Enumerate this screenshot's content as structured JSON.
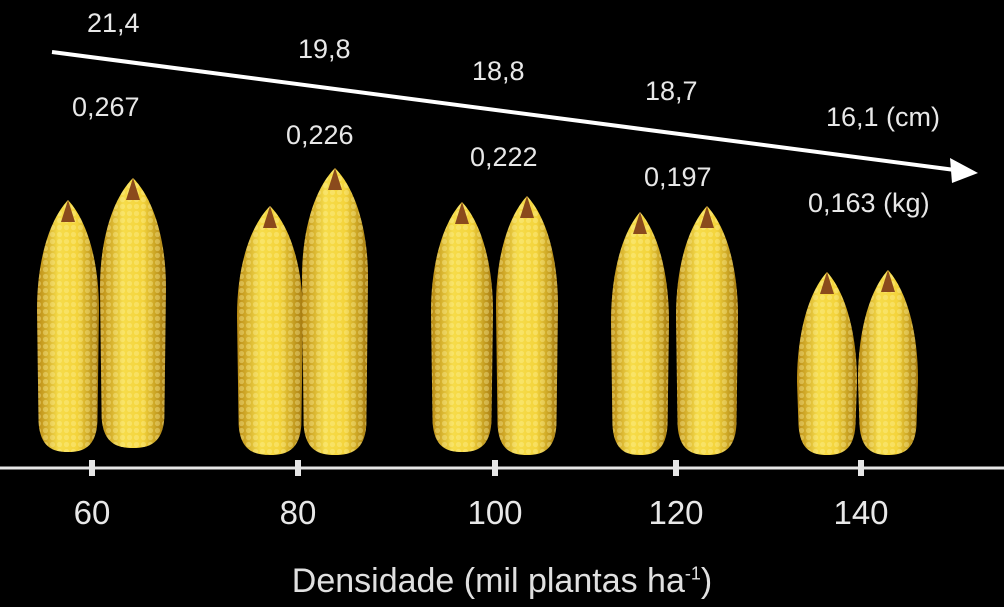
{
  "figure": {
    "x_axis_title": "Densidade (mil plantas ha",
    "x_axis_title_sup": "-1",
    "x_axis_title_close": ")",
    "groups": [
      {
        "density": "60",
        "length": "21,4",
        "mass": "0,267"
      },
      {
        "density": "80",
        "length": "19,8",
        "mass": "0,226"
      },
      {
        "density": "100",
        "length": "18,8",
        "mass": "0,222"
      },
      {
        "density": "120",
        "length": "18,7",
        "mass": "0,197"
      },
      {
        "density": "140",
        "length": "16,1 (cm)",
        "mass": "0,163 (kg)"
      }
    ],
    "colors": {
      "background": "#000000",
      "kernel": "#f2d23a",
      "kernel_shadow": "#c99a18",
      "tip": "#8a4a1c",
      "arrow": "#ffffff",
      "axis": "#e6e6e6"
    },
    "icons": [
      "trend-arrow-icon",
      "corn-ear-icon"
    ]
  }
}
